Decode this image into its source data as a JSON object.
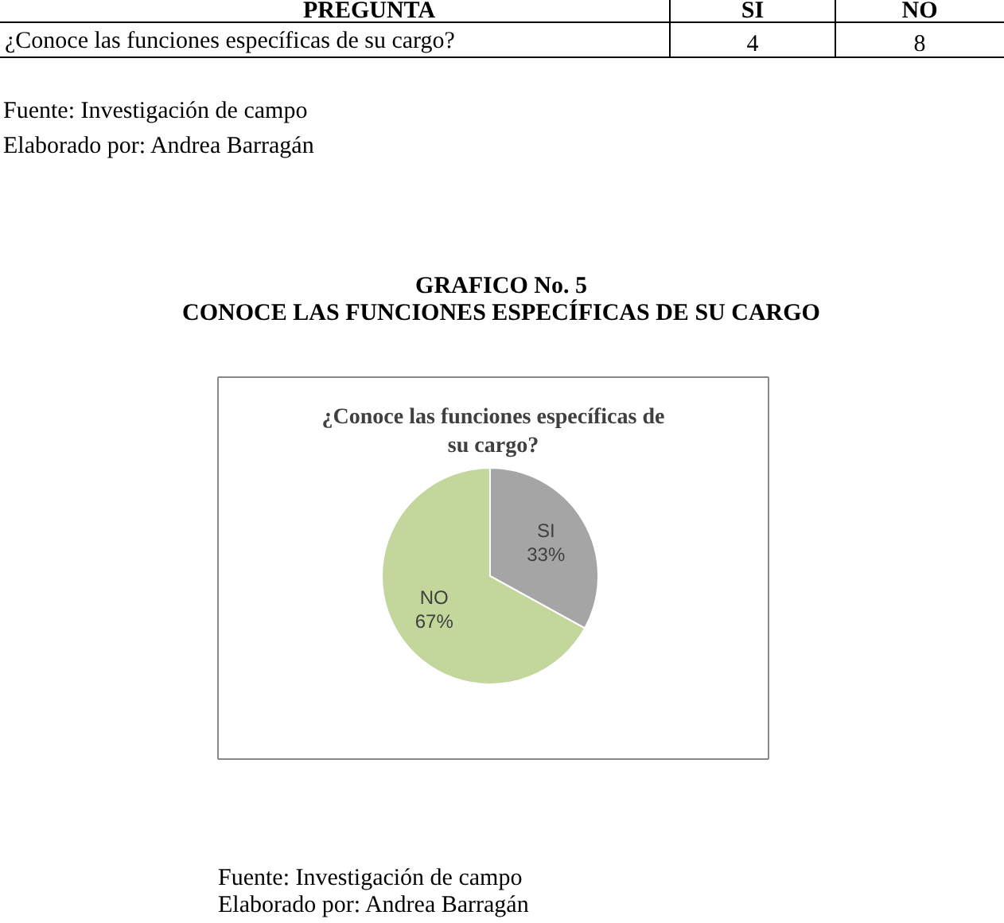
{
  "chart_data": {
    "type": "pie",
    "title": "¿Conoce las funciones específicas de su cargo?",
    "categories": [
      "SI",
      "NO"
    ],
    "values": [
      33,
      67
    ],
    "colors": [
      "#a5a5a5",
      "#c3d69b"
    ],
    "value_labels": [
      "33%",
      "67%"
    ],
    "annotations": [
      "PREGUNTA",
      "SI",
      "NO",
      "¿Conoce las funciones específicas de su cargo?",
      "4",
      "8",
      "Fuente: Investigación de campo",
      "Elaborado por: Andrea Barragán",
      "GRAFICO No. 5",
      "CONOCE LAS FUNCIONES ESPECÍFICAS DE SU CARGO",
      "Fuente: Investigación de campo",
      "Elaborado por: Andrea Barragán"
    ]
  }
}
